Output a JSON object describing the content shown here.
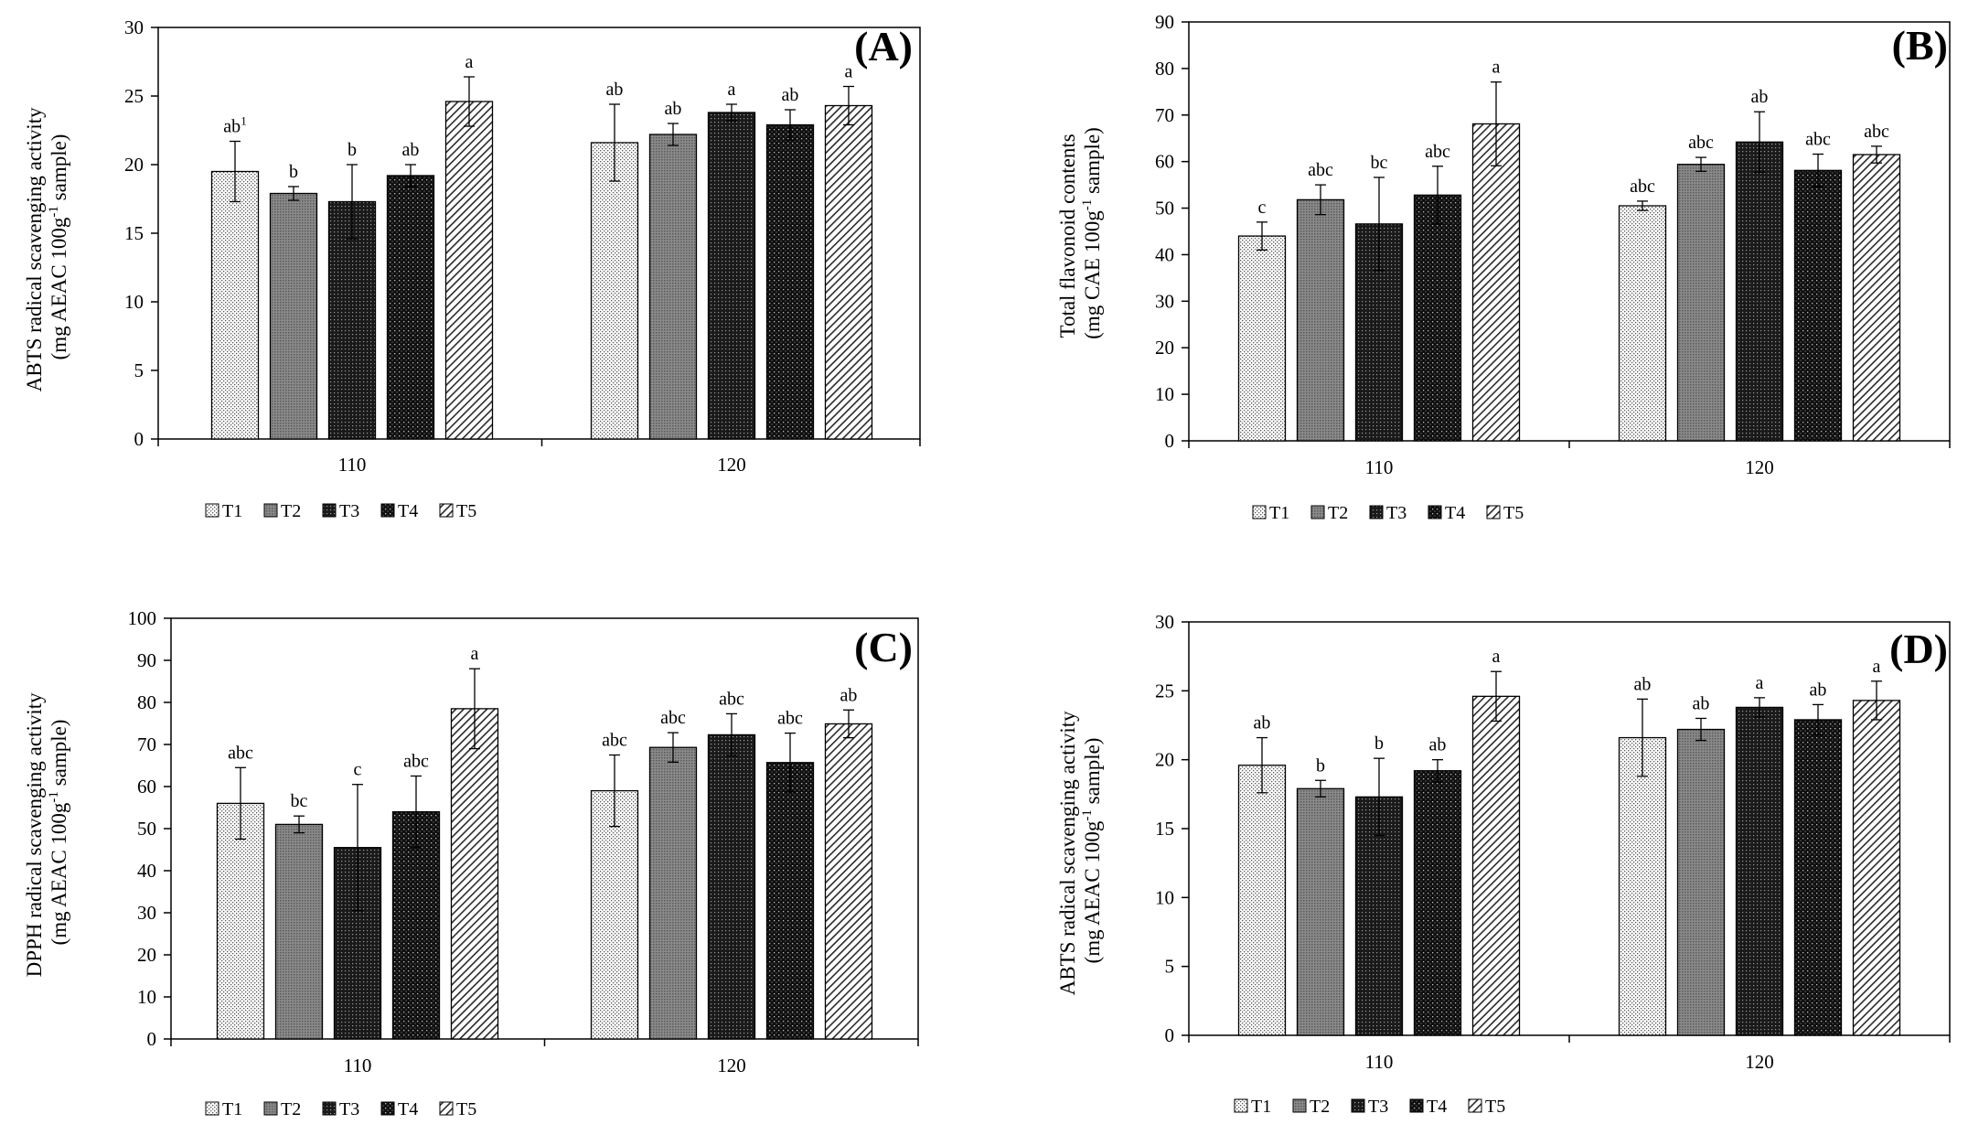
{
  "chart_data": [
    {
      "type": "bar",
      "panel_label": "(A)",
      "ylabel_line1": "ABTS radical scavenging activity",
      "ylabel_line2_pre": "(mg AEAC 100g",
      "ylabel_line2_sup": "-1",
      "ylabel_line2_post": " sample)",
      "ylim": [
        0,
        30
      ],
      "yticks": [
        0,
        5,
        10,
        15,
        20,
        25,
        30
      ],
      "categories": [
        "110",
        "120"
      ],
      "series": [
        {
          "name": "T1",
          "values": [
            19.5,
            21.6
          ],
          "errors": [
            2.2,
            2.8
          ],
          "letters": [
            "ab1",
            "ab"
          ]
        },
        {
          "name": "T2",
          "values": [
            17.9,
            22.2
          ],
          "errors": [
            0.5,
            0.8
          ],
          "letters": [
            "b",
            "ab"
          ]
        },
        {
          "name": "T3",
          "values": [
            17.3,
            23.8
          ],
          "errors": [
            2.7,
            0.6
          ],
          "letters": [
            "b",
            "a"
          ]
        },
        {
          "name": "T4",
          "values": [
            19.2,
            22.9
          ],
          "errors": [
            0.8,
            1.1
          ],
          "letters": [
            "ab",
            "ab"
          ]
        },
        {
          "name": "T5",
          "values": [
            24.6,
            24.3
          ],
          "errors": [
            1.8,
            1.4
          ],
          "letters": [
            "a",
            "a"
          ]
        }
      ],
      "legend": [
        "T1",
        "T2",
        "T3",
        "T4",
        "T5"
      ]
    },
    {
      "type": "bar",
      "panel_label": "(B)",
      "ylabel_line1": "Total flavonoid contents",
      "ylabel_line2_pre": "(mg CAE 100g",
      "ylabel_line2_sup": "-1",
      "ylabel_line2_post": " sample)",
      "ylim": [
        0,
        90
      ],
      "yticks": [
        0,
        10,
        20,
        30,
        40,
        50,
        60,
        70,
        80,
        90
      ],
      "categories": [
        "110",
        "120"
      ],
      "series": [
        {
          "name": "T1",
          "values": [
            44.0,
            50.5
          ],
          "errors": [
            3.0,
            1.0
          ],
          "letters": [
            "c",
            "abc"
          ]
        },
        {
          "name": "T2",
          "values": [
            51.8,
            59.4
          ],
          "errors": [
            3.2,
            1.5
          ],
          "letters": [
            "abc",
            "abc"
          ]
        },
        {
          "name": "T3",
          "values": [
            46.6,
            64.2
          ],
          "errors": [
            10.0,
            6.5
          ],
          "letters": [
            "bc",
            "ab"
          ]
        },
        {
          "name": "T4",
          "values": [
            52.8,
            58.1
          ],
          "errors": [
            6.2,
            3.5
          ],
          "letters": [
            "abc",
            "abc"
          ]
        },
        {
          "name": "T5",
          "values": [
            68.1,
            61.5
          ],
          "errors": [
            9.0,
            1.8
          ],
          "letters": [
            "a",
            "abc"
          ]
        }
      ],
      "legend": [
        "T1",
        "T2",
        "T3",
        "T4",
        "T5"
      ]
    },
    {
      "type": "bar",
      "panel_label": "(C)",
      "ylabel_line1": "DPPH radical scavenging activity",
      "ylabel_line2_pre": "(mg AEAC 100g",
      "ylabel_line2_sup": "-1",
      "ylabel_line2_post": " sample)",
      "ylim": [
        0,
        100
      ],
      "yticks": [
        0,
        10,
        20,
        30,
        40,
        50,
        60,
        70,
        80,
        90,
        100
      ],
      "categories": [
        "110",
        "120"
      ],
      "series": [
        {
          "name": "T1",
          "values": [
            56.0,
            59.0
          ],
          "errors": [
            8.5,
            8.5
          ],
          "letters": [
            "abc",
            "abc"
          ]
        },
        {
          "name": "T2",
          "values": [
            51.0,
            69.3
          ],
          "errors": [
            2.0,
            3.5
          ],
          "letters": [
            "bc",
            "abc"
          ]
        },
        {
          "name": "T3",
          "values": [
            45.5,
            72.3
          ],
          "errors": [
            15.0,
            5.0
          ],
          "letters": [
            "c",
            "abc"
          ]
        },
        {
          "name": "T4",
          "values": [
            54.0,
            65.7
          ],
          "errors": [
            8.5,
            7.0
          ],
          "letters": [
            "abc",
            "abc"
          ]
        },
        {
          "name": "T5",
          "values": [
            78.5,
            74.9
          ],
          "errors": [
            9.5,
            3.3
          ],
          "letters": [
            "a",
            "ab"
          ]
        }
      ],
      "legend": [
        "T1",
        "T2",
        "T3",
        "T4",
        "T5"
      ]
    },
    {
      "type": "bar",
      "panel_label": "(D)",
      "ylabel_line1": "ABTS radical scavenging activity",
      "ylabel_line2_pre": "(mg AEAC 100g",
      "ylabel_line2_sup": "-1",
      "ylabel_line2_post": " sample)",
      "ylim": [
        0,
        30
      ],
      "yticks": [
        0,
        5,
        10,
        15,
        20,
        25,
        30
      ],
      "categories": [
        "110",
        "120"
      ],
      "series": [
        {
          "name": "T1",
          "values": [
            19.6,
            21.6
          ],
          "errors": [
            2.0,
            2.8
          ],
          "letters": [
            "ab",
            "ab"
          ]
        },
        {
          "name": "T2",
          "values": [
            17.9,
            22.2
          ],
          "errors": [
            0.6,
            0.8
          ],
          "letters": [
            "b",
            "ab"
          ]
        },
        {
          "name": "T3",
          "values": [
            17.3,
            23.8
          ],
          "errors": [
            2.8,
            0.7
          ],
          "letters": [
            "b",
            "a"
          ]
        },
        {
          "name": "T4",
          "values": [
            19.2,
            22.9
          ],
          "errors": [
            0.8,
            1.1
          ],
          "letters": [
            "ab",
            "ab"
          ]
        },
        {
          "name": "T5",
          "values": [
            24.6,
            24.3
          ],
          "errors": [
            1.8,
            1.4
          ],
          "letters": [
            "a",
            "a"
          ]
        }
      ],
      "legend": [
        "T1",
        "T2",
        "T3",
        "T4",
        "T5"
      ]
    }
  ]
}
